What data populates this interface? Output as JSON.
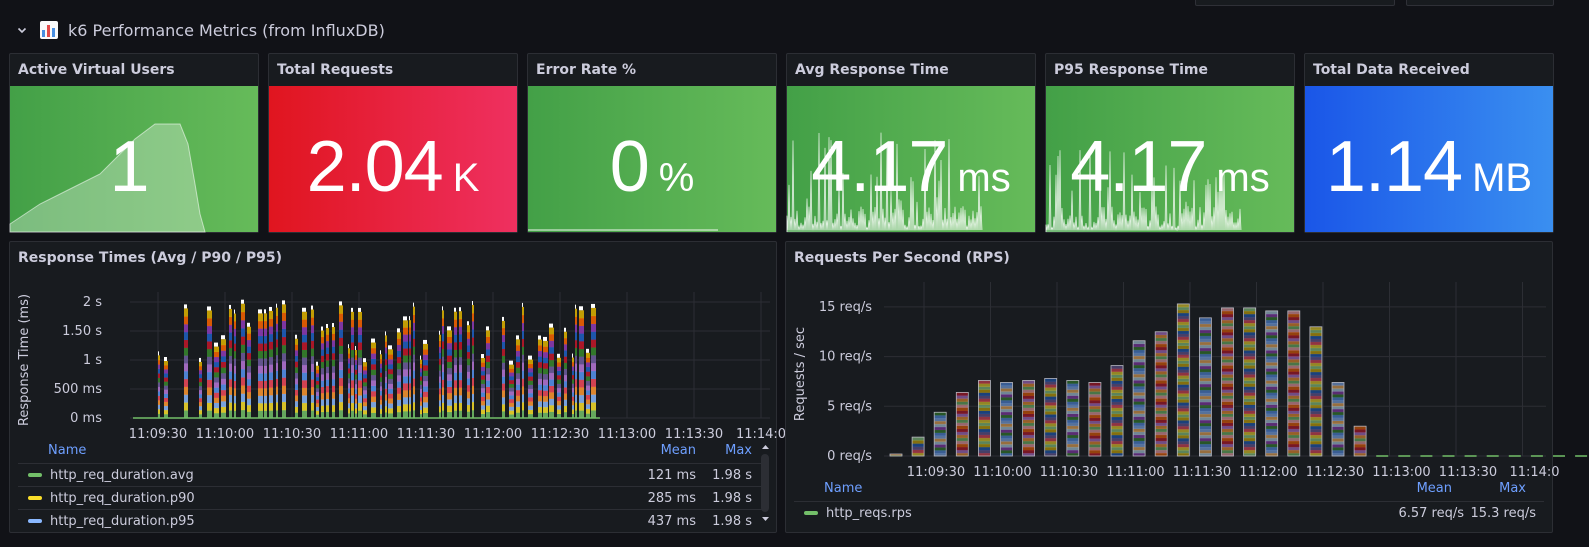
{
  "row": {
    "title": "k6 Performance Metrics (from InfluxDB)",
    "chevron_icon": "chevron-down-icon",
    "icon": "bar-chart-icon"
  },
  "colors": {
    "green": "#4caf50",
    "red": "#e02f44",
    "blue": "#1f60c4",
    "bg": "#181b1f"
  },
  "stats": [
    {
      "title": "Active Virtual Users",
      "value": "1",
      "unit": "",
      "color": "green",
      "spark": "area"
    },
    {
      "title": "Total Requests",
      "value": "2.04",
      "unit": "K",
      "color": "red",
      "spark": "none"
    },
    {
      "title": "Error Rate %",
      "value": "0",
      "unit": "%",
      "color": "green",
      "spark": "flat"
    },
    {
      "title": "Avg Response Time",
      "value": "4.17",
      "unit": "ms",
      "color": "green",
      "spark": "spikes"
    },
    {
      "title": "P95 Response Time",
      "value": "4.17",
      "unit": "ms",
      "color": "green",
      "spark": "spikes"
    },
    {
      "title": "Total Data Received",
      "value": "1.14",
      "unit": "MB",
      "color": "blue",
      "spark": "none"
    }
  ],
  "response_panel": {
    "title": "Response Times (Avg / P90 / P95)",
    "legend": {
      "name_header": "Name",
      "mean_header": "Mean",
      "max_header": "Max",
      "rows": [
        {
          "name": "http_req_duration.avg",
          "color": "#73bf69",
          "mean": "121 ms",
          "max": "1.98 s"
        },
        {
          "name": "http_req_duration.p90",
          "color": "#fade2a",
          "mean": "285 ms",
          "max": "1.98 s"
        },
        {
          "name": "http_req_duration.p95",
          "color": "#8ab8ff",
          "mean": "437 ms",
          "max": "1.98 s"
        }
      ]
    }
  },
  "rps_panel": {
    "title": "Requests Per Second (RPS)",
    "legend": {
      "name_header": "Name",
      "mean_header": "Mean",
      "max_header": "Max",
      "rows": [
        {
          "name": "http_reqs.rps",
          "color": "#73bf69",
          "mean": "6.57 req/s",
          "max": "15.3 req/s"
        }
      ]
    }
  },
  "chart_data": [
    {
      "type": "area",
      "ylabel": "Response Time (ms)",
      "y_ticks": [
        "0 ms",
        "500 ms",
        "1 s",
        "1.50 s",
        "2 s"
      ],
      "ylim": [
        0,
        2
      ],
      "x_ticks": [
        "11:09:30",
        "11:10:00",
        "11:10:30",
        "11:11:00",
        "11:11:30",
        "11:12:00",
        "11:12:30",
        "11:13:00",
        "11:13:30",
        "11:14:0"
      ],
      "grid": true,
      "series": [
        {
          "name": "http_req_duration.avg",
          "mean_s": 0.121,
          "max_s": 1.98
        },
        {
          "name": "http_req_duration.p90",
          "mean_s": 0.285,
          "max_s": 1.98
        },
        {
          "name": "http_req_duration.p95",
          "mean_s": 0.437,
          "max_s": 1.98
        }
      ]
    },
    {
      "type": "bar",
      "ylabel": "Requests / sec",
      "y_ticks": [
        "0 req/s",
        "5 req/s",
        "10 req/s",
        "15 req/s"
      ],
      "ylim": [
        0,
        16.5
      ],
      "x_ticks": [
        "11:09:30",
        "11:10:00",
        "11:10:30",
        "11:11:00",
        "11:11:30",
        "11:12:00",
        "11:12:30",
        "11:13:00",
        "11:13:30",
        "11:14:0"
      ],
      "grid": true,
      "series": [
        {
          "name": "http_reqs.rps",
          "values": [
            0.2,
            1.9,
            4.4,
            6.4,
            7.6,
            7.4,
            7.6,
            7.8,
            7.6,
            7.4,
            9.1,
            11.6,
            12.5,
            15.3,
            13.9,
            14.9,
            14.9,
            14.6,
            14.6,
            13.0,
            7.4,
            3.0,
            0,
            0,
            0,
            0,
            0,
            0,
            0,
            0,
            0,
            0
          ]
        }
      ]
    }
  ]
}
